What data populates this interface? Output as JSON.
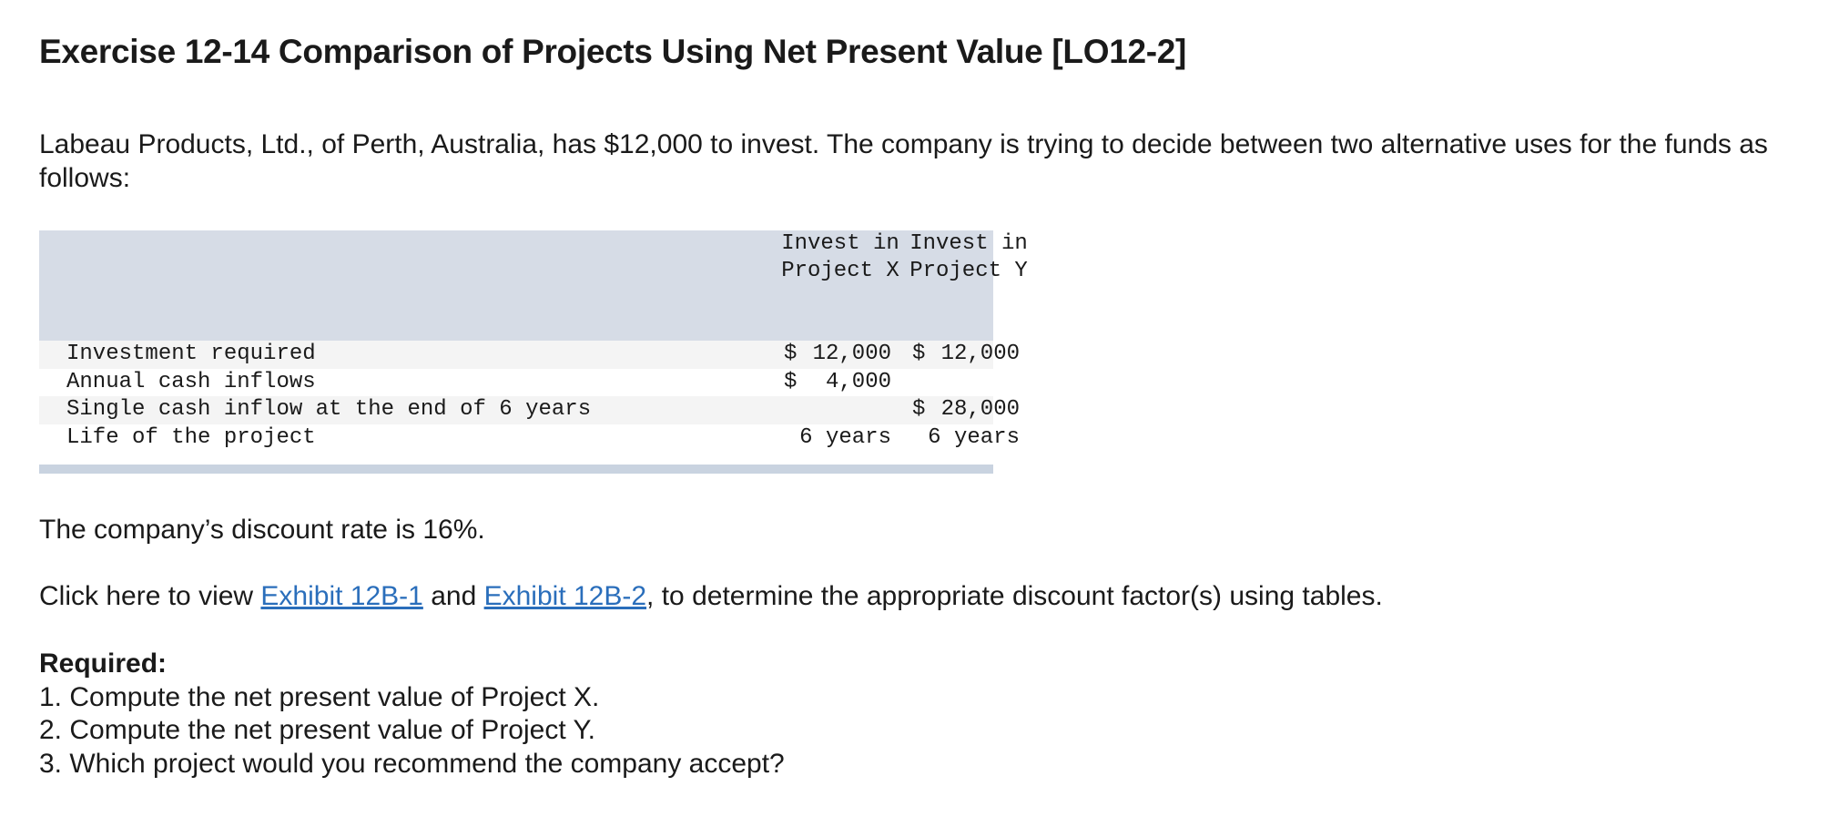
{
  "header": {
    "title": "Exercise 12-14 Comparison of Projects Using Net Present Value [LO12-2]"
  },
  "intro": "Labeau Products, Ltd., of Perth, Australia, has $12,000 to invest. The company is trying to decide between two alternative uses for the funds as follows:",
  "table": {
    "headers": [
      "Invest in Project X",
      "Invest in Project Y"
    ],
    "rows": [
      {
        "label": "Investment required",
        "x": {
          "currency": "$",
          "amount": "12,000"
        },
        "y": {
          "currency": "$",
          "amount": "12,000"
        }
      },
      {
        "label": "Annual cash inflows",
        "x": {
          "currency": "$",
          "amount": "4,000"
        },
        "y": null
      },
      {
        "label": "Single cash inflow at the end of 6 years",
        "x": null,
        "y": {
          "currency": "$",
          "amount": "28,000"
        }
      },
      {
        "label": "Life of the project",
        "x": {
          "currency": null,
          "amount": "6 years"
        },
        "y": {
          "currency": null,
          "amount": "6 years"
        }
      }
    ]
  },
  "discount": "The company’s discount rate is 16%.",
  "exhibits": {
    "before": "Click here to view",
    "link1": "Exhibit 12B-1",
    "middle": "and",
    "link2": "Exhibit 12B-2",
    "after": ", to determine the appropriate discount factor(s) using tables."
  },
  "required": {
    "heading": "Required:",
    "items": [
      "1. Compute the net present value of Project X.",
      "2. Compute the net present value of Project Y.",
      "3. Which project would you recommend the company accept?"
    ]
  }
}
